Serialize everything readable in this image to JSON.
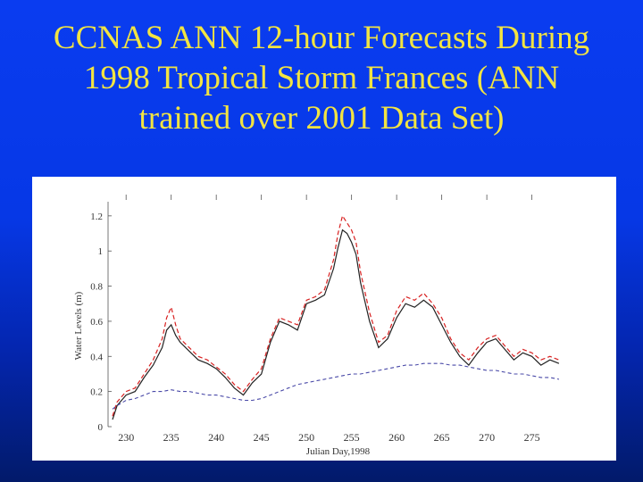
{
  "slide": {
    "title_lines": [
      "CCNAS ANN 12-hour Forecasts During",
      "1998 Tropical Storm Frances (ANN",
      "trained over 2001 Data Set)"
    ]
  },
  "colors": {
    "background": "#0a3cf0",
    "title": "#f2e442",
    "series_observed": "#222222",
    "series_forecast": "#d82020",
    "series_tide": "#4a4aa8"
  },
  "chart_data": {
    "type": "line",
    "xlabel": "Julian Day,1998",
    "ylabel": "Water Levels (m)",
    "xlim": [
      228,
      279
    ],
    "ylim": [
      0,
      1.25
    ],
    "xticks": [
      230,
      235,
      240,
      245,
      250,
      255,
      260,
      265,
      270,
      275
    ],
    "yticks": [
      0,
      0.2,
      0.4,
      0.6,
      0.8,
      1,
      1.2
    ],
    "ytick_labels": [
      "0",
      "0.2",
      "0.4",
      "0.6",
      "0.8",
      "1",
      "1.2"
    ],
    "grid": false,
    "legend": "none",
    "series": [
      {
        "style": "solid-black",
        "x": [
          228.5,
          229,
          230,
          231,
          232,
          233,
          234,
          234.5,
          235,
          235.5,
          236,
          237,
          238,
          239,
          240,
          241,
          242,
          243,
          244,
          245,
          246,
          247,
          248,
          249,
          250,
          251,
          252,
          253,
          253.5,
          254,
          254.5,
          255,
          255.5,
          256,
          257,
          258,
          259,
          260,
          261,
          262,
          263,
          264,
          265,
          266,
          267,
          268,
          269,
          270,
          271,
          272,
          273,
          274,
          275,
          276,
          277,
          278
        ],
        "y": [
          0.04,
          0.12,
          0.18,
          0.2,
          0.28,
          0.35,
          0.45,
          0.55,
          0.58,
          0.52,
          0.48,
          0.43,
          0.38,
          0.36,
          0.33,
          0.28,
          0.22,
          0.18,
          0.25,
          0.3,
          0.48,
          0.6,
          0.58,
          0.55,
          0.7,
          0.72,
          0.75,
          0.9,
          1.02,
          1.12,
          1.1,
          1.05,
          0.98,
          0.82,
          0.6,
          0.45,
          0.5,
          0.62,
          0.7,
          0.68,
          0.72,
          0.68,
          0.58,
          0.48,
          0.4,
          0.35,
          0.42,
          0.48,
          0.5,
          0.44,
          0.38,
          0.42,
          0.4,
          0.35,
          0.38,
          0.36
        ]
      },
      {
        "style": "dashed-red",
        "x": [
          228.5,
          229,
          230,
          231,
          232,
          233,
          234,
          234.5,
          235,
          235.5,
          236,
          237,
          238,
          239,
          240,
          241,
          242,
          243,
          244,
          245,
          246,
          247,
          248,
          249,
          250,
          251,
          252,
          253,
          253.5,
          254,
          254.5,
          255,
          255.5,
          256,
          257,
          258,
          259,
          260,
          261,
          262,
          263,
          264,
          265,
          266,
          267,
          268,
          269,
          270,
          271,
          272,
          273,
          274,
          275,
          276,
          277,
          278
        ],
        "y": [
          0.06,
          0.14,
          0.2,
          0.22,
          0.3,
          0.38,
          0.5,
          0.62,
          0.68,
          0.58,
          0.5,
          0.45,
          0.4,
          0.38,
          0.34,
          0.3,
          0.24,
          0.2,
          0.27,
          0.33,
          0.5,
          0.62,
          0.6,
          0.58,
          0.72,
          0.74,
          0.78,
          0.95,
          1.1,
          1.2,
          1.16,
          1.12,
          1.05,
          0.88,
          0.65,
          0.48,
          0.52,
          0.66,
          0.74,
          0.72,
          0.76,
          0.7,
          0.62,
          0.5,
          0.42,
          0.38,
          0.45,
          0.5,
          0.52,
          0.46,
          0.4,
          0.44,
          0.42,
          0.38,
          0.4,
          0.38
        ]
      },
      {
        "style": "dashed-blue",
        "x": [
          228.5,
          229,
          230,
          231,
          232,
          233,
          234,
          235,
          236,
          237,
          238,
          239,
          240,
          241,
          242,
          243,
          244,
          245,
          246,
          247,
          248,
          249,
          250,
          251,
          252,
          253,
          254,
          255,
          256,
          257,
          258,
          259,
          260,
          261,
          262,
          263,
          264,
          265,
          266,
          267,
          268,
          269,
          270,
          271,
          272,
          273,
          274,
          275,
          276,
          277,
          278
        ],
        "y": [
          0.1,
          0.12,
          0.15,
          0.16,
          0.18,
          0.2,
          0.2,
          0.21,
          0.2,
          0.2,
          0.19,
          0.18,
          0.18,
          0.17,
          0.16,
          0.15,
          0.15,
          0.16,
          0.18,
          0.2,
          0.22,
          0.24,
          0.25,
          0.26,
          0.27,
          0.28,
          0.29,
          0.3,
          0.3,
          0.31,
          0.32,
          0.33,
          0.34,
          0.35,
          0.35,
          0.36,
          0.36,
          0.36,
          0.35,
          0.35,
          0.34,
          0.33,
          0.32,
          0.32,
          0.31,
          0.3,
          0.3,
          0.29,
          0.28,
          0.28,
          0.27
        ]
      }
    ]
  }
}
